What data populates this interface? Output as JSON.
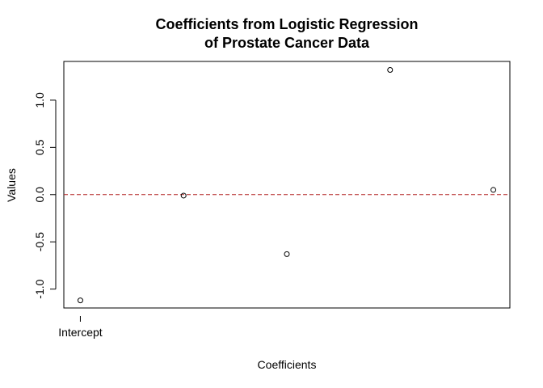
{
  "chart_data": {
    "type": "scatter",
    "title": [
      "Coefficients from Logistic Regression",
      "of Prostate Cancer Data"
    ],
    "xlabel": "Coefficients",
    "ylabel": "Values",
    "x": [
      1,
      2,
      3,
      4,
      5
    ],
    "values": [
      -1.12,
      -0.01,
      -0.63,
      1.32,
      0.05
    ],
    "x_tick_labels": [
      {
        "x": 1,
        "label": "Intercept"
      }
    ],
    "y_ticks": [
      -1.0,
      -0.5,
      0.0,
      0.5,
      1.0
    ],
    "y_tick_labels": [
      "-1.0",
      "-0.5",
      "0.0",
      "0.5",
      "1.0"
    ],
    "xlim": [
      0.84,
      5.16
    ],
    "ylim": [
      -1.2,
      1.41
    ],
    "reference_line": {
      "y": 0,
      "style": "dashed",
      "color": "#b22222"
    },
    "point_style": "open-circle",
    "grid": false,
    "legend": "none"
  }
}
